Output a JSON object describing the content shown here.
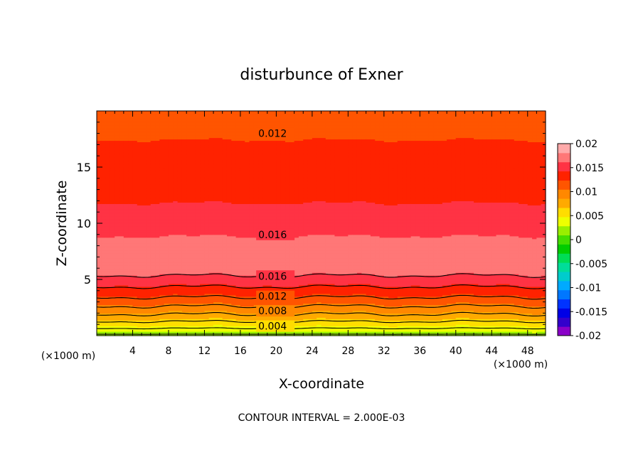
{
  "chart_data": {
    "type": "heatmap",
    "title": "disturbunce of Exner",
    "xlabel": "X-coordinate",
    "ylabel": "Z-coordinate",
    "x_unit": "(×1000 m)",
    "x_unit_right": "(×1000 m)",
    "xlim": [
      0,
      50
    ],
    "ylim": [
      0,
      20
    ],
    "x_ticks": [
      4,
      8,
      12,
      16,
      20,
      24,
      28,
      32,
      36,
      40,
      44,
      48
    ],
    "y_ticks": [
      5,
      10,
      15
    ],
    "footnote": "CONTOUR INTERVAL = 2.000E-03",
    "contour_interval": 0.002,
    "colorbar": {
      "ticks": [
        "0.02",
        "0.015",
        "0.01",
        "0.005",
        "0",
        "-0.005",
        "-0.01",
        "-0.015",
        "-0.02"
      ],
      "min": -0.02,
      "max": 0.02,
      "colors": [
        "#8a00c8",
        "#3300cc",
        "#0000e6",
        "#0033ff",
        "#0077ff",
        "#00aaff",
        "#00cccc",
        "#00dd99",
        "#00dd55",
        "#00cc00",
        "#44dd00",
        "#99ee00",
        "#eeff00",
        "#ffdd00",
        "#ffaa00",
        "#ff8800",
        "#ff5500",
        "#ff2200",
        "#ff3344",
        "#ff7777",
        "#ffaaaa"
      ]
    },
    "profile": {
      "z": [
        0,
        0.5,
        1,
        1.5,
        2,
        2.5,
        3,
        3.5,
        4,
        4.5,
        5,
        5.5,
        6,
        6.5,
        7,
        7.5,
        8,
        8.5,
        9,
        9.5,
        10,
        11,
        12,
        13,
        14,
        15,
        16,
        17,
        18,
        19,
        20
      ],
      "value": [
        0.0015,
        0.0035,
        0.0052,
        0.0068,
        0.0083,
        0.0097,
        0.011,
        0.0122,
        0.0133,
        0.0143,
        0.0153,
        0.0163,
        0.0171,
        0.0176,
        0.0178,
        0.0177,
        0.0173,
        0.0167,
        0.016,
        0.0156,
        0.0152,
        0.0147,
        0.0142,
        0.0139,
        0.0136,
        0.0133,
        0.013,
        0.0126,
        0.0121,
        0.0115,
        0.011
      ]
    },
    "contour_labels": [
      {
        "text": "0.012",
        "x": 18,
        "z": 18.0
      },
      {
        "text": "0.016",
        "x": 18,
        "z": 9.0
      },
      {
        "text": "0.016",
        "x": 18,
        "z": 5.3
      },
      {
        "text": "0.012",
        "x": 18,
        "z": 3.5
      },
      {
        "text": "0.008",
        "x": 18,
        "z": 2.2
      },
      {
        "text": "0.004",
        "x": 18,
        "z": 0.85
      }
    ]
  }
}
